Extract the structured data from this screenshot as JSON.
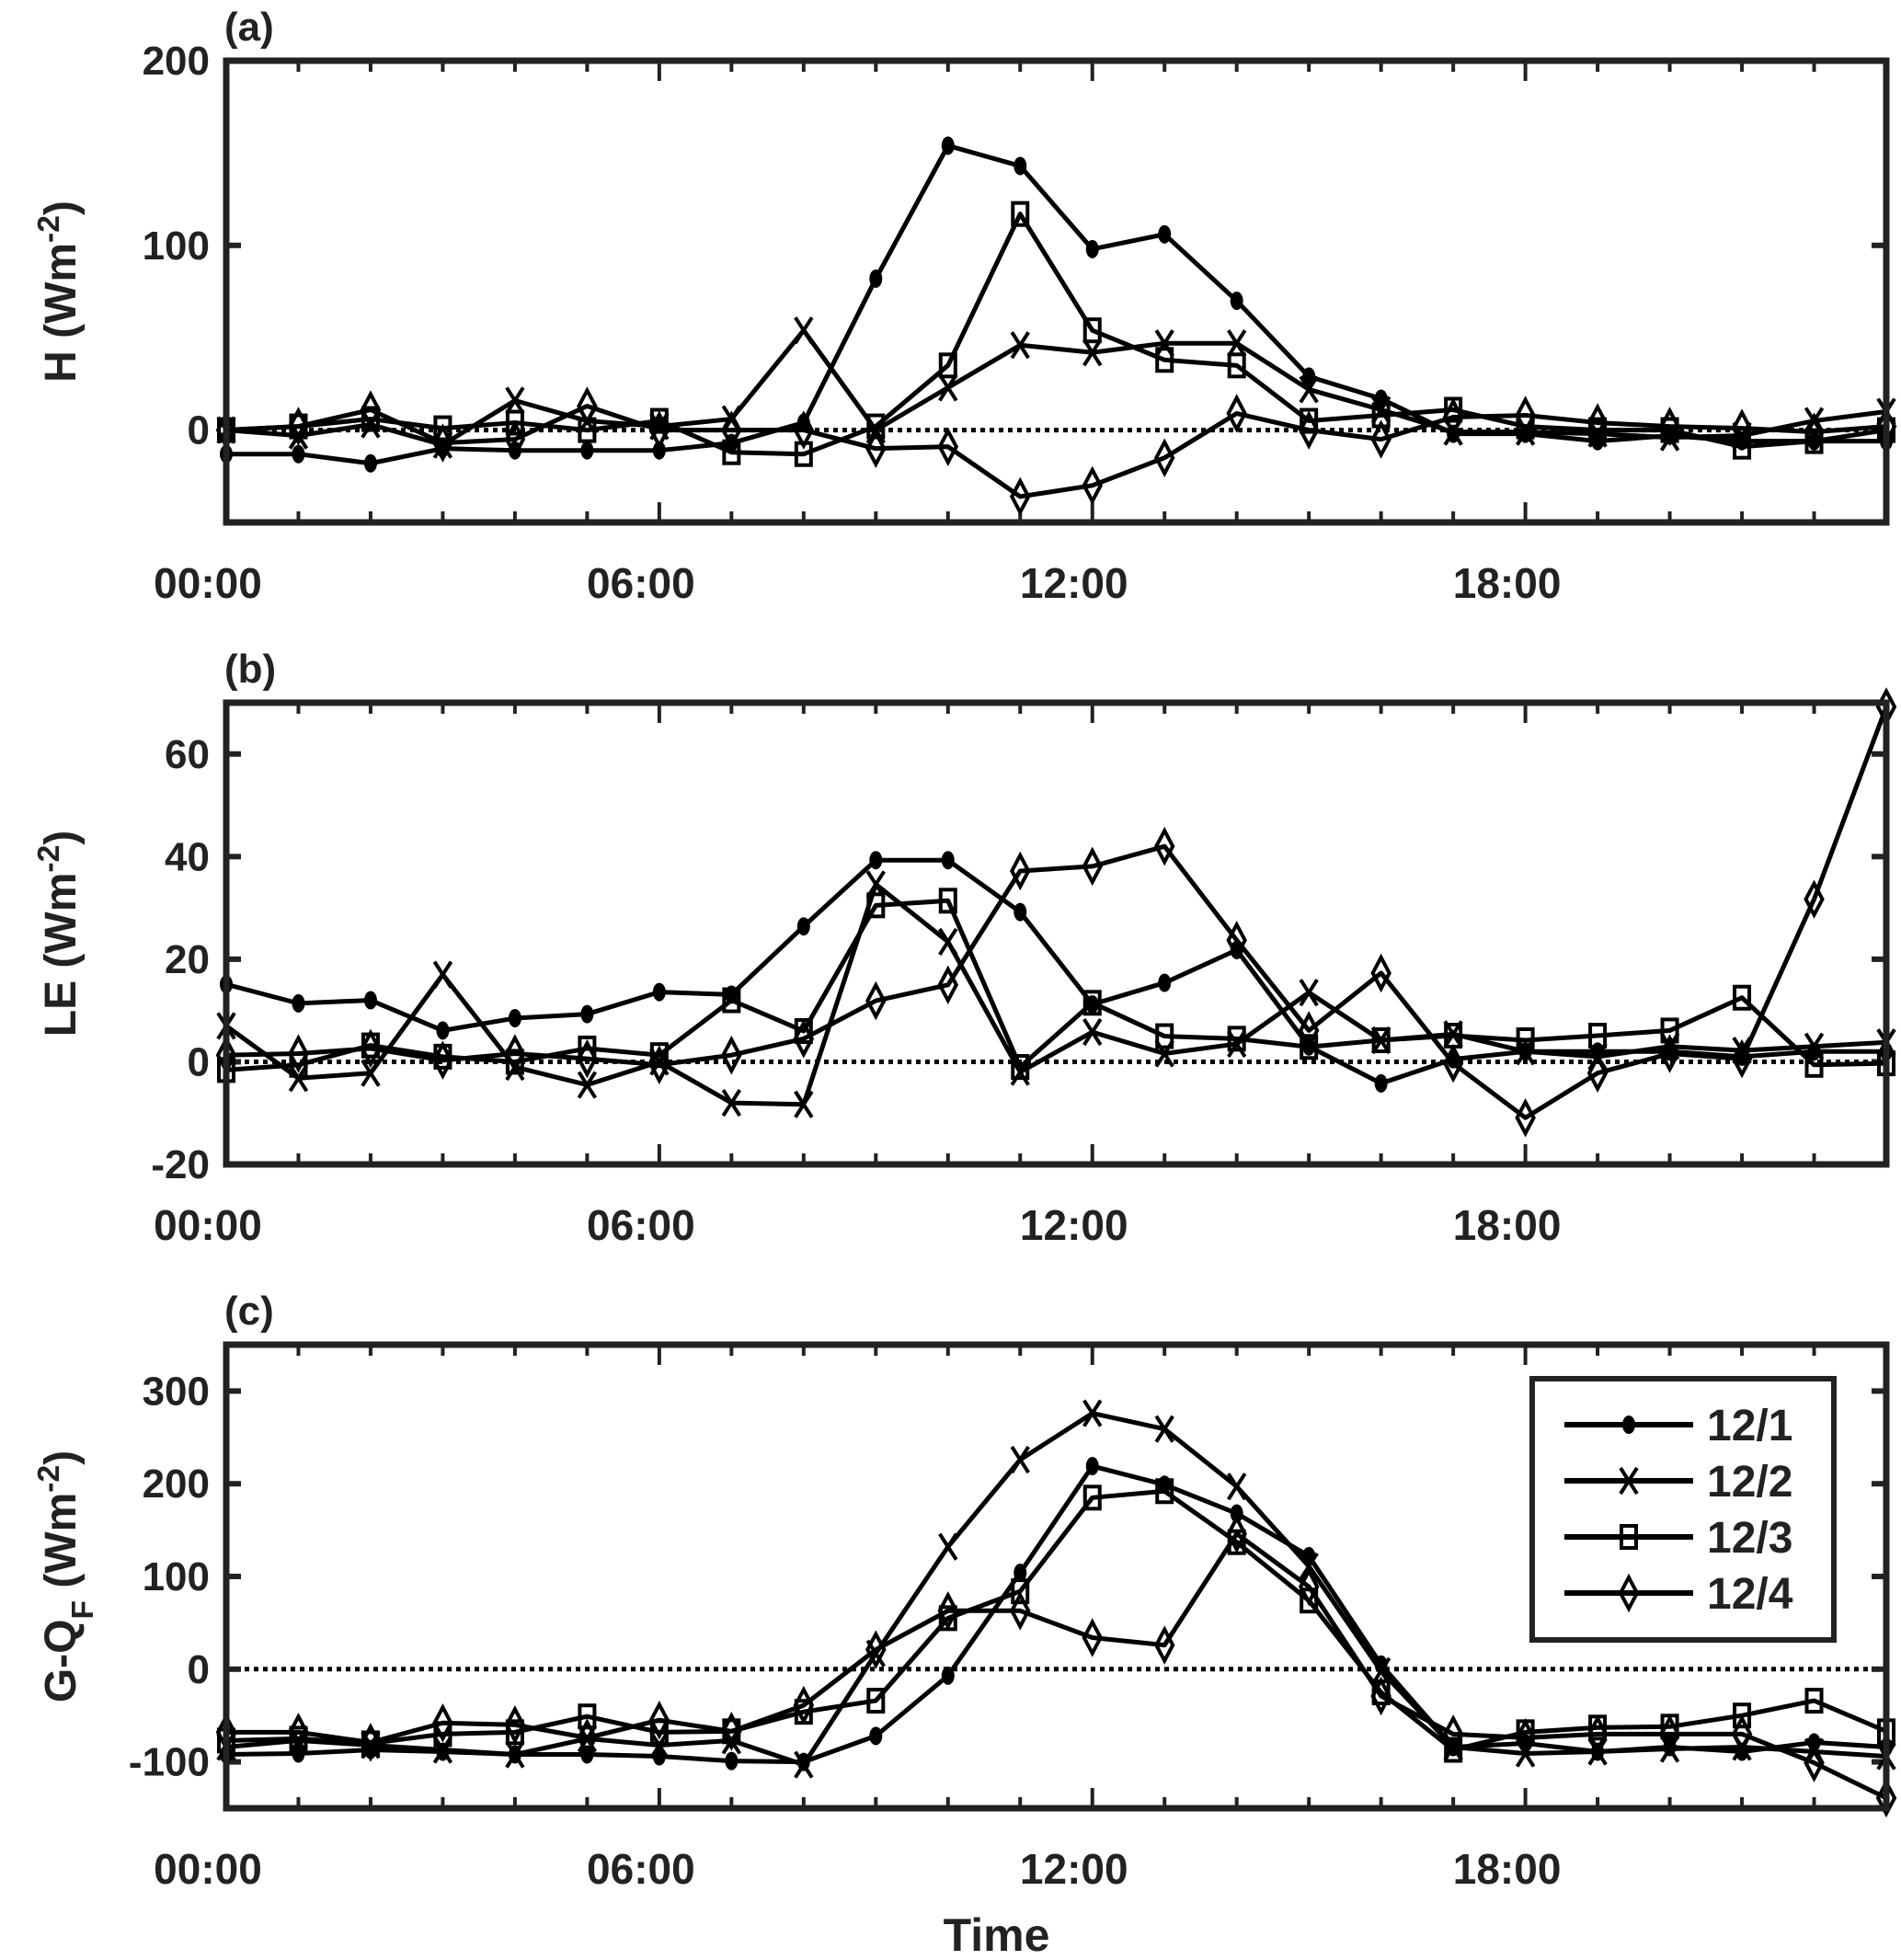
{
  "chart_data": [
    {
      "id": "a",
      "type": "line",
      "panel_label": "(a)",
      "ylabel": "H (Wm^-2)",
      "xlabel": "",
      "ylim": [
        -50,
        200
      ],
      "yticks": [
        0,
        100,
        200
      ],
      "xlim": [
        0,
        23
      ],
      "xticks": [
        0,
        6,
        12,
        18
      ],
      "xticklabels": [
        "00:00",
        "06:00",
        "12:00",
        "18:00"
      ],
      "x": [
        0,
        1,
        2,
        3,
        4,
        5,
        6,
        7,
        8,
        9,
        10,
        11,
        12,
        13,
        14,
        15,
        16,
        17,
        18,
        19,
        20,
        21,
        22,
        23
      ],
      "reference_line": 0,
      "series": [
        {
          "name": "12/1",
          "marker": "dot",
          "values": [
            -13,
            -13,
            -18,
            -10,
            -11,
            -11,
            -11,
            -7,
            4,
            82,
            154,
            143,
            98,
            106,
            70,
            29,
            17,
            -2,
            -2,
            -6,
            -3,
            -6,
            -6,
            -6
          ]
        },
        {
          "name": "12/2",
          "marker": "x",
          "values": [
            0,
            -3,
            3,
            -8,
            16,
            5,
            2,
            6,
            54,
            0,
            23,
            46,
            42,
            47,
            47,
            22,
            11,
            -1,
            -1,
            -2,
            -4,
            -3,
            5,
            10
          ]
        },
        {
          "name": "12/3",
          "marker": "square",
          "values": [
            0,
            2,
            6,
            1,
            4,
            0,
            5,
            -12,
            -13,
            2,
            35,
            117,
            54,
            38,
            35,
            5,
            8,
            11,
            2,
            0,
            0,
            -9,
            -6,
            0
          ]
        },
        {
          "name": "12/4",
          "marker": "diamond",
          "values": [
            0,
            2,
            11,
            -7,
            -5,
            13,
            0,
            0,
            0,
            -10,
            -9,
            -36,
            -30,
            -15,
            9,
            0,
            -5,
            7,
            8,
            4,
            2,
            1,
            -1,
            2
          ]
        }
      ]
    },
    {
      "id": "b",
      "type": "line",
      "panel_label": "(b)",
      "ylabel": "LE (Wm^-2)",
      "xlabel": "",
      "ylim": [
        -20,
        70
      ],
      "yticks": [
        -20,
        0,
        20,
        40,
        60
      ],
      "xlim": [
        0,
        23
      ],
      "xticks": [
        0,
        6,
        12,
        18
      ],
      "xticklabels": [
        "00:00",
        "06:00",
        "12:00",
        "18:00"
      ],
      "x": [
        0,
        1,
        2,
        3,
        4,
        5,
        6,
        7,
        8,
        9,
        10,
        11,
        12,
        13,
        14,
        15,
        16,
        17,
        18,
        19,
        20,
        21,
        22,
        23
      ],
      "reference_line": 0,
      "series": [
        {
          "name": "12/1",
          "marker": "dot",
          "values": [
            15.1,
            11.4,
            12,
            6.1,
            8.5,
            9.3,
            13.6,
            13.1,
            26.4,
            39.3,
            39.3,
            29.2,
            11.2,
            15.4,
            21.8,
            3,
            -4.2,
            0.5,
            2,
            2,
            2,
            1,
            2,
            2
          ]
        },
        {
          "name": "12/2",
          "marker": "x",
          "values": [
            7,
            -3.2,
            -2.2,
            17,
            -1,
            -4.5,
            0,
            -8,
            -8.3,
            34.6,
            23.4,
            -2,
            5.8,
            1.6,
            3.5,
            13.5,
            4.2,
            5.4,
            2,
            1,
            3,
            2.2,
            3,
            3.8
          ]
        },
        {
          "name": "12/3",
          "marker": "square",
          "values": [
            -1.6,
            -0.6,
            3.2,
            1,
            0,
            2.6,
            1.3,
            12,
            6,
            30.5,
            31.4,
            -1,
            11.5,
            5,
            4.5,
            2.9,
            4.2,
            5.1,
            4.2,
            5.1,
            6.1,
            12.5,
            -0.6,
            -0.3
          ]
        },
        {
          "name": "12/4",
          "marker": "diamond",
          "values": [
            1.3,
            1.6,
            2.6,
            0.3,
            1.6,
            0.6,
            -0.6,
            1.3,
            4.5,
            11.9,
            15,
            37.2,
            38.1,
            42,
            23.7,
            6.1,
            17.3,
            -0.3,
            -10.9,
            -2.2,
            1.6,
            0.6,
            31.7,
            69.2
          ]
        }
      ]
    },
    {
      "id": "c",
      "type": "line",
      "panel_label": "(c)",
      "ylabel": "G-Q_F (Wm^-2)",
      "xlabel": "Time",
      "ylim": [
        -150,
        350
      ],
      "yticks": [
        -100,
        0,
        100,
        200,
        300
      ],
      "xlim": [
        0,
        23
      ],
      "xticks": [
        0,
        6,
        12,
        18
      ],
      "xticklabels": [
        "00:00",
        "06:00",
        "12:00",
        "18:00"
      ],
      "x": [
        0,
        1,
        2,
        3,
        4,
        5,
        6,
        7,
        8,
        9,
        10,
        11,
        12,
        13,
        14,
        15,
        16,
        17,
        18,
        19,
        20,
        21,
        22,
        23
      ],
      "reference_line": 0,
      "legend": {
        "placement": "top-right",
        "entries": [
          "12/1",
          "12/2",
          "12/3",
          "12/4"
        ]
      },
      "series": [
        {
          "name": "12/1",
          "marker": "dot",
          "values": [
            -92,
            -91,
            -87,
            -89,
            -92,
            -92,
            -94,
            -99,
            -100,
            -72,
            -7,
            104,
            219,
            199,
            168,
            122,
            5,
            -84,
            -80,
            -89,
            -84,
            -89,
            -79,
            -84
          ]
        },
        {
          "name": "12/2",
          "marker": "x",
          "values": [
            -84,
            -77,
            -82,
            -87,
            -92,
            -75,
            -82,
            -77,
            -103,
            17,
            132,
            226,
            276,
            259,
            197,
            111,
            -2,
            -84,
            -91,
            -89,
            -86,
            -84,
            -89,
            -94
          ]
        },
        {
          "name": "12/3",
          "marker": "square",
          "values": [
            -77,
            -75,
            -80,
            -70,
            -68,
            -51,
            -68,
            -67,
            -46,
            -34,
            55,
            84,
            185,
            192,
            137,
            74,
            -25,
            -87,
            -68,
            -63,
            -62,
            -50,
            -34,
            -67
          ]
        },
        {
          "name": "12/4",
          "marker": "diamond",
          "values": [
            -68,
            -68,
            -79,
            -58,
            -60,
            -74,
            -55,
            -67,
            -39,
            21,
            63,
            63,
            34,
            26,
            146,
            89,
            -29,
            -70,
            -74,
            -70,
            -70,
            -70,
            -101,
            -139
          ]
        }
      ]
    }
  ],
  "colors": {
    "axis": "#222222",
    "series": "#000000",
    "background": "#ffffff"
  }
}
